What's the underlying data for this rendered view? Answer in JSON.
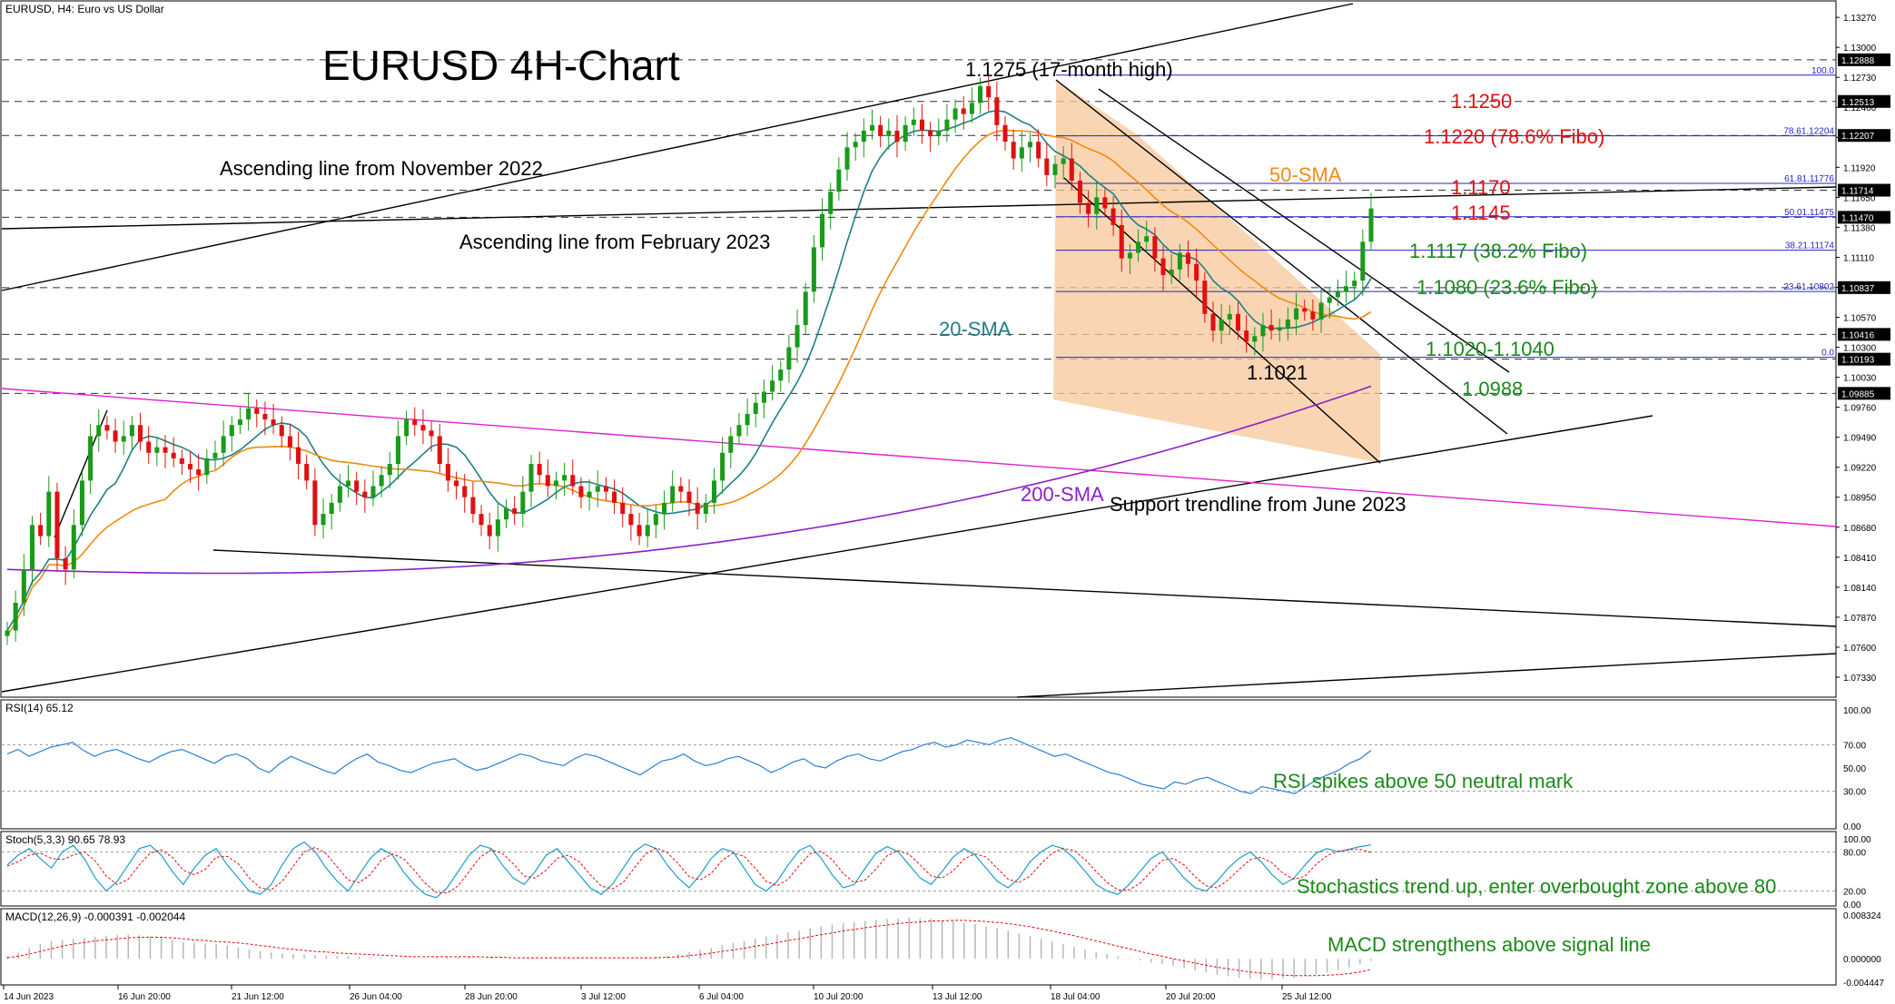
{
  "header": {
    "symbol": "EURUSD, H4:  Euro vs US Dollar"
  },
  "title": "EURUSD 4H-Chart",
  "colors": {
    "bull": "#1a9a1a",
    "bear": "#e01010",
    "sma20": "#1e7f86",
    "sma50": "#f08a10",
    "sma200": "#8a20c8",
    "magenta_line": "#e020d0",
    "fib": "#2424c8",
    "channel_fill": "#f7c79a",
    "rsi": "#2a7fd4",
    "stoch_main": "#1a9ec8",
    "stoch_signal": "#e01010",
    "macd_hist": "#b8b8b8",
    "macd_signal": "#e01010"
  },
  "price_axis_labels": [
    "1.13270",
    "1.13000",
    "1.12730",
    "1.12460",
    "1.12190",
    "1.11920",
    "1.11650",
    "1.11380",
    "1.11110",
    "1.10840",
    "1.10570",
    "1.10300",
    "1.10030",
    "1.09760",
    "1.09490",
    "1.09220",
    "1.08950",
    "1.08680",
    "1.08410",
    "1.08140",
    "1.07870",
    "1.07600",
    "1.07330"
  ],
  "price_axis_highlights": [
    "1.12888",
    "1.12513",
    "1.12207",
    "1.11714",
    "1.11470",
    "1.10837",
    "1.10416",
    "1.10193",
    "1.09885"
  ],
  "time_axis_labels": [
    "14 Jun 2023",
    "16 Jun 20:00",
    "21 Jun 12:00",
    "26 Jun 04:00",
    "28 Jun 20:00",
    "3 Jul 12:00",
    "6 Jul 04:00",
    "10 Jul 20:00",
    "13 Jul 12:00",
    "18 Jul 04:00",
    "20 Jul 20:00",
    "25 Jul 12:00"
  ],
  "fib_labels": [
    "100.0",
    "78.61.12204",
    "61.81.11776",
    "50.01.11475",
    "38.21.11174",
    "23.61.10802",
    "0.0"
  ],
  "annotations": {
    "high": "1.1275 (17-month high)",
    "asc_nov": "Ascending line from November 2022",
    "asc_feb": "Ascending line from February 2023",
    "l1250": "1.1250",
    "l1220": "1.1220 (78.6% Fibo)",
    "sma50": "50-SMA",
    "l1170": "1.1170",
    "l1145": "1.1145",
    "l1117": "1.1117 (38.2% Fibo)",
    "l1080": "1.1080 (23.6% Fibo)",
    "sma20": "20-SMA",
    "l1020": "1.1020-1.1040",
    "low": "1.1021",
    "l0988": "1.0988",
    "sma200": "200-SMA",
    "support": "Support trendline from June 2023",
    "rsi": "RSI spikes above 50 neutral mark",
    "stoch": "Stochastics trend up, enter overbought zone above 80",
    "macd": "MACD strengthens above signal line"
  },
  "rsi": {
    "header": "RSI(14) 65.12",
    "axis": [
      "100.00",
      "70.00",
      "50.00",
      "30.00",
      "0.00"
    ],
    "values": [
      62,
      66,
      60,
      64,
      68,
      70,
      72,
      65,
      60,
      64,
      66,
      62,
      58,
      55,
      60,
      64,
      66,
      62,
      58,
      54,
      60,
      62,
      58,
      50,
      46,
      54,
      60,
      56,
      52,
      48,
      45,
      52,
      58,
      62,
      55,
      52,
      48,
      46,
      50,
      54,
      56,
      58,
      52,
      48,
      50,
      54,
      58,
      62,
      60,
      56,
      54,
      52,
      58,
      62,
      60,
      56,
      52,
      48,
      44,
      50,
      56,
      58,
      62,
      56,
      52,
      54,
      58,
      60,
      56,
      52,
      46,
      50,
      55,
      58,
      52,
      50,
      56,
      60,
      62,
      58,
      56,
      60,
      64,
      66,
      70,
      72,
      68,
      70,
      74,
      72,
      70,
      74,
      76,
      72,
      68,
      64,
      60,
      62,
      58,
      54,
      50,
      46,
      44,
      40,
      36,
      34,
      32,
      38,
      36,
      40,
      42,
      38,
      34,
      30,
      28,
      34,
      32,
      30,
      28,
      34,
      40,
      44,
      48,
      54,
      58,
      65.12
    ]
  },
  "stoch": {
    "header": "Stoch(5,3,3) 90.65 78.93",
    "axis": [
      "100.00",
      "80.00",
      "20.00",
      "0.00"
    ],
    "k": [
      60,
      75,
      85,
      70,
      55,
      80,
      90,
      70,
      40,
      20,
      35,
      60,
      85,
      90,
      75,
      50,
      30,
      55,
      75,
      85,
      60,
      40,
      20,
      15,
      30,
      60,
      85,
      95,
      80,
      55,
      35,
      20,
      45,
      70,
      85,
      75,
      50,
      30,
      15,
      10,
      25,
      50,
      75,
      90,
      85,
      60,
      40,
      30,
      50,
      75,
      85,
      65,
      45,
      25,
      15,
      30,
      55,
      80,
      92,
      85,
      60,
      40,
      25,
      45,
      70,
      85,
      80,
      55,
      30,
      20,
      35,
      60,
      82,
      90,
      70,
      45,
      25,
      30,
      55,
      78,
      88,
      80,
      60,
      40,
      30,
      50,
      72,
      85,
      75,
      55,
      35,
      25,
      40,
      65,
      80,
      90,
      85,
      70,
      50,
      30,
      20,
      15,
      30,
      50,
      70,
      80,
      60,
      40,
      25,
      20,
      35,
      55,
      70,
      80,
      65,
      45,
      30,
      40,
      60,
      78,
      85,
      80,
      84,
      88,
      90.65
    ],
    "d": [
      58,
      65,
      75,
      78,
      70,
      68,
      75,
      80,
      66,
      43,
      30,
      38,
      60,
      78,
      83,
      72,
      52,
      45,
      53,
      72,
      73,
      62,
      40,
      25,
      22,
      35,
      58,
      80,
      87,
      77,
      57,
      37,
      33,
      45,
      67,
      77,
      70,
      52,
      32,
      18,
      17,
      28,
      50,
      72,
      83,
      78,
      62,
      43,
      40,
      52,
      70,
      75,
      65,
      45,
      28,
      23,
      33,
      55,
      76,
      86,
      79,
      62,
      42,
      37,
      47,
      67,
      78,
      73,
      55,
      35,
      28,
      38,
      59,
      77,
      81,
      68,
      47,
      33,
      37,
      54,
      74,
      82,
      76,
      60,
      43,
      40,
      51,
      69,
      77,
      72,
      55,
      38,
      33,
      43,
      62,
      78,
      85,
      82,
      68,
      50,
      33,
      22,
      22,
      32,
      50,
      67,
      70,
      60,
      42,
      28,
      25,
      37,
      53,
      68,
      72,
      63,
      47,
      38,
      43,
      61,
      74,
      81,
      83,
      84,
      78.93
    ]
  },
  "macd": {
    "header": "MACD(12,26,9) -0.000391 -0.002044",
    "axis": [
      "0.008324",
      "0.000000",
      "-0.004447"
    ],
    "hist": [
      0.0005,
      0.0012,
      0.002,
      0.0028,
      0.0034,
      0.0036,
      0.0038,
      0.004,
      0.0042,
      0.0044,
      0.0045,
      0.0046,
      0.0045,
      0.0043,
      0.004,
      0.0036,
      0.0032,
      0.003,
      0.0029,
      0.0028,
      0.0026,
      0.0022,
      0.0018,
      0.0015,
      0.0012,
      0.001,
      0.0009,
      0.0008,
      0.0007,
      0.0006,
      0.0006,
      0.0005,
      0.0004,
      0.0003,
      0.0002,
      0.0002,
      0.0001,
      0.0001,
      0.0002,
      0.0002,
      0.0003,
      0.0003,
      0.0003,
      0.0002,
      0.0002,
      0.0001,
      0.0,
      0.0,
      0.0001,
      0.0002,
      0.0002,
      0.0002,
      0.0002,
      0.0001,
      0.0001,
      0.0001,
      0.0002,
      0.0002,
      0.0003,
      0.0004,
      0.0006,
      0.0009,
      0.0013,
      0.0017,
      0.0021,
      0.0026,
      0.003,
      0.0034,
      0.0038,
      0.0042,
      0.0046,
      0.005,
      0.0054,
      0.0058,
      0.0062,
      0.0065,
      0.0068,
      0.007,
      0.0072,
      0.0074,
      0.0076,
      0.0077,
      0.0078,
      0.0077,
      0.0076,
      0.0074,
      0.0072,
      0.0069,
      0.0066,
      0.0062,
      0.0058,
      0.0053,
      0.0048,
      0.0043,
      0.0038,
      0.0033,
      0.0028,
      0.0023,
      0.0018,
      0.0013,
      0.0009,
      0.0005,
      0.0001,
      -0.0003,
      -0.0007,
      -0.001,
      -0.0014,
      -0.0018,
      -0.0022,
      -0.0026,
      -0.003,
      -0.0033,
      -0.0036,
      -0.0038,
      -0.0039,
      -0.0039,
      -0.0038,
      -0.0036,
      -0.0033,
      -0.003,
      -0.0026,
      -0.0021,
      -0.0016,
      -0.001,
      -0.000391
    ],
    "signal": [
      0.0002,
      0.0005,
      0.0009,
      0.0014,
      0.0019,
      0.0024,
      0.0028,
      0.0031,
      0.0034,
      0.0036,
      0.0038,
      0.004,
      0.0041,
      0.0041,
      0.0041,
      0.004,
      0.0038,
      0.0036,
      0.0035,
      0.0033,
      0.0032,
      0.003,
      0.0028,
      0.0025,
      0.0023,
      0.002,
      0.0018,
      0.0016,
      0.0014,
      0.0013,
      0.0011,
      0.001,
      0.0009,
      0.0008,
      0.0007,
      0.0006,
      0.0005,
      0.0004,
      0.0004,
      0.0004,
      0.0004,
      0.0004,
      0.0004,
      0.0004,
      0.0003,
      0.0003,
      0.0002,
      0.0002,
      0.0002,
      0.0002,
      0.0002,
      0.0002,
      0.0002,
      0.0002,
      0.0002,
      0.0002,
      0.0002,
      0.0002,
      0.0002,
      0.0002,
      0.0003,
      0.0004,
      0.0006,
      0.0008,
      0.0011,
      0.0014,
      0.0017,
      0.002,
      0.0024,
      0.0027,
      0.0031,
      0.0035,
      0.0038,
      0.0042,
      0.0046,
      0.0049,
      0.0053,
      0.0056,
      0.0059,
      0.0062,
      0.0064,
      0.0067,
      0.0069,
      0.007,
      0.0072,
      0.0072,
      0.0073,
      0.0073,
      0.0072,
      0.0071,
      0.0069,
      0.0067,
      0.0064,
      0.0061,
      0.0057,
      0.0053,
      0.0048,
      0.0044,
      0.0039,
      0.0034,
      0.0029,
      0.0024,
      0.0019,
      0.0014,
      0.0009,
      0.0005,
      0.0,
      -0.0004,
      -0.0008,
      -0.0012,
      -0.0016,
      -0.0019,
      -0.0022,
      -0.0025,
      -0.0027,
      -0.0029,
      -0.0031,
      -0.0032,
      -0.0032,
      -0.0032,
      -0.0031,
      -0.003,
      -0.0028,
      -0.0025,
      -0.002044
    ]
  },
  "chart_data": {
    "type": "candlestick",
    "title": "EURUSD 4H-Chart",
    "symbol": "EURUSD, H4",
    "ylim": [
      1.0715,
      1.1341
    ],
    "closes": [
      1.0775,
      1.08,
      1.083,
      1.087,
      1.086,
      1.09,
      1.084,
      1.083,
      1.087,
      1.091,
      1.095,
      1.096,
      1.0955,
      1.0945,
      1.095,
      1.096,
      1.0945,
      1.0935,
      1.094,
      1.0935,
      1.093,
      1.0925,
      1.092,
      1.0915,
      1.093,
      1.0935,
      1.095,
      1.096,
      1.0965,
      1.0975,
      1.097,
      1.0965,
      1.096,
      1.095,
      1.094,
      1.0925,
      1.091,
      1.087,
      1.088,
      1.089,
      1.0905,
      1.091,
      1.09,
      1.0895,
      1.0905,
      1.0915,
      1.0925,
      1.095,
      1.0965,
      1.096,
      1.0955,
      1.095,
      1.0925,
      1.091,
      1.0905,
      1.0895,
      1.088,
      1.087,
      1.086,
      1.0875,
      1.0885,
      1.088,
      1.09,
      1.0925,
      1.0915,
      1.0905,
      1.091,
      1.0915,
      1.0905,
      1.0895,
      1.09,
      1.0905,
      1.09,
      1.089,
      1.088,
      1.087,
      1.086,
      1.087,
      1.088,
      1.089,
      1.0905,
      1.09,
      1.089,
      1.088,
      1.089,
      1.091,
      1.0935,
      1.095,
      1.096,
      1.097,
      1.098,
      1.099,
      1.1,
      1.101,
      1.103,
      1.105,
      1.108,
      1.112,
      1.115,
      1.117,
      1.119,
      1.121,
      1.1215,
      1.1225,
      1.123,
      1.122,
      1.1225,
      1.1215,
      1.123,
      1.1235,
      1.1225,
      1.122,
      1.1225,
      1.1235,
      1.1245,
      1.124,
      1.125,
      1.1265,
      1.1255,
      1.123,
      1.1215,
      1.12,
      1.121,
      1.1215,
      1.12,
      1.1185,
      1.1195,
      1.12,
      1.118,
      1.116,
      1.115,
      1.1165,
      1.1155,
      1.114,
      1.111,
      1.1115,
      1.1125,
      1.113,
      1.111,
      1.1095,
      1.11,
      1.1115,
      1.1105,
      1.109,
      1.106,
      1.1045,
      1.1055,
      1.106,
      1.1045,
      1.1035,
      1.104,
      1.105,
      1.1045,
      1.1048,
      1.1055,
      1.1065,
      1.1062,
      1.1055,
      1.107,
      1.1075,
      1.108,
      1.1085,
      1.109,
      1.1125,
      1.1155
    ],
    "moving_averages": [
      "20-SMA",
      "50-SMA",
      "200-SMA"
    ],
    "fibonacci": [
      {
        "level": "100.0",
        "price": 1.1275
      },
      {
        "level": "78.6",
        "price": 1.12204
      },
      {
        "level": "61.8",
        "price": 1.11776
      },
      {
        "level": "50.0",
        "price": 1.11475
      },
      {
        "level": "38.2",
        "price": 1.11174
      },
      {
        "level": "23.6",
        "price": 1.10802
      },
      {
        "level": "0.0",
        "price": 1.1021
      }
    ],
    "key_levels": [
      1.1275,
      1.125,
      1.122,
      1.117,
      1.1145,
      1.1117,
      1.108,
      1.104,
      1.102,
      1.0988
    ]
  }
}
